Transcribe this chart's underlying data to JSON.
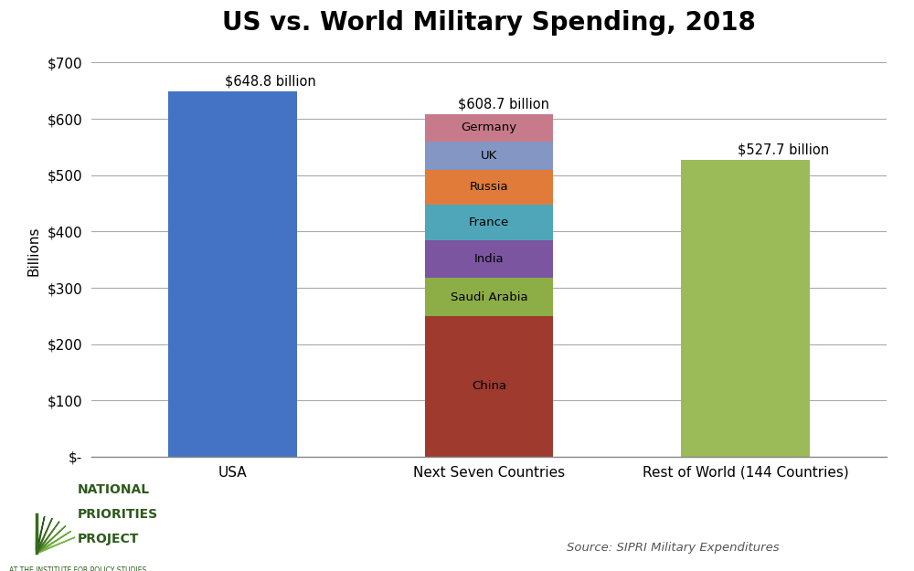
{
  "title": "US vs. World Military Spending, 2018",
  "title_fontsize": 20,
  "categories": [
    "USA",
    "Next Seven Countries",
    "Rest of World (144 Countries)"
  ],
  "usa_value": 648.8,
  "usa_color": "#4472C4",
  "rest_color": "#9BBB59",
  "rest_value": 527.7,
  "next_seven": {
    "segments": [
      {
        "label": "China",
        "value": 250.0,
        "color": "#9E3B2E"
      },
      {
        "label": "Saudi Arabia",
        "value": 67.6,
        "color": "#8DAE47"
      },
      {
        "label": "India",
        "value": 66.5,
        "color": "#7B55A0"
      },
      {
        "label": "France",
        "value": 63.8,
        "color": "#4EA6B8"
      },
      {
        "label": "Russia",
        "value": 61.4,
        "color": "#E07B39"
      },
      {
        "label": "UK",
        "value": 50.0,
        "color": "#8496C4"
      },
      {
        "label": "Germany",
        "value": 49.4,
        "color": "#C77B8A"
      }
    ],
    "total": 608.7
  },
  "ylabel": "Billions",
  "ylim": [
    0,
    730
  ],
  "yticks": [
    0,
    100,
    200,
    300,
    400,
    500,
    600,
    700
  ],
  "ytick_labels": [
    "$-",
    "$100",
    "$200",
    "$300",
    "$400",
    "$500",
    "$600",
    "$700"
  ],
  "background_color": "#FFFFFF",
  "source_text": "Source: SIPRI Military Expenditures",
  "logo_green": "#3A6B1A",
  "logo_text_color": "#2D5A1B",
  "logo_subtext": "AT THE INSTITUTE FOR POLICY STUDIES"
}
